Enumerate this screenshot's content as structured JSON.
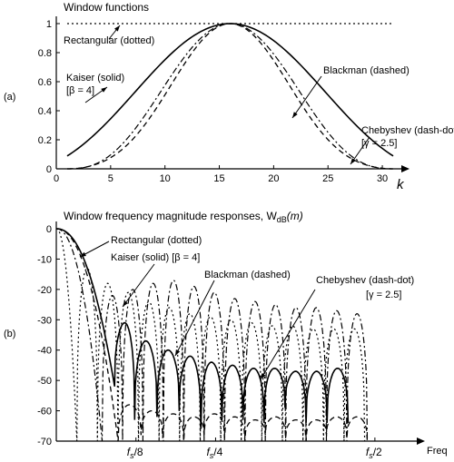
{
  "chart_data": [
    {
      "type": "line",
      "panel_label": "(a)",
      "title": "Window functions",
      "xlabel": "k",
      "xlim": [
        0,
        32
      ],
      "ylim": [
        0,
        1
      ],
      "x_ticks": [
        0,
        5,
        10,
        15,
        20,
        25,
        30
      ],
      "y_ticks": [
        0,
        0.2,
        0.4,
        0.6,
        0.8,
        1
      ],
      "y_tick_labels": [
        "0",
        "0.2",
        "0.4",
        "0.6",
        "0.8",
        "1"
      ],
      "grid": false,
      "series": [
        {
          "key": "rectangular",
          "style": "dotted",
          "x": [
            1,
            31
          ],
          "y": [
            1,
            1
          ]
        },
        {
          "key": "kaiser",
          "style": "solid",
          "x": [
            1,
            3,
            5,
            7,
            9,
            11,
            13,
            15,
            16,
            17,
            19,
            21,
            23,
            25,
            27,
            29,
            31
          ],
          "y": [
            0.09,
            0.19,
            0.32,
            0.47,
            0.63,
            0.79,
            0.92,
            0.99,
            1.0,
            0.99,
            0.92,
            0.79,
            0.63,
            0.47,
            0.32,
            0.19,
            0.09
          ]
        },
        {
          "key": "blackman",
          "style": "dashed",
          "x": [
            1,
            3,
            5,
            7,
            9,
            11,
            13,
            15,
            16,
            17,
            19,
            21,
            23,
            25,
            27,
            29,
            31
          ],
          "y": [
            0.0,
            0.04,
            0.13,
            0.29,
            0.51,
            0.74,
            0.92,
            0.99,
            1.0,
            0.99,
            0.92,
            0.74,
            0.51,
            0.29,
            0.13,
            0.04,
            0.0
          ]
        },
        {
          "key": "chebyshev",
          "style": "dash-dot",
          "x": [
            1,
            3,
            5,
            7,
            9,
            11,
            13,
            15,
            16,
            17,
            19,
            21,
            23,
            25,
            27,
            29,
            31
          ],
          "y": [
            0.0,
            0.01,
            0.05,
            0.15,
            0.33,
            0.58,
            0.84,
            0.98,
            1.0,
            0.98,
            0.84,
            0.58,
            0.33,
            0.15,
            0.05,
            0.01,
            0.0
          ]
        }
      ],
      "annotations": [
        {
          "key": "rectangular",
          "lines": [
            "Rectangular (dotted)"
          ]
        },
        {
          "key": "kaiser",
          "lines": [
            "Kaiser (solid)",
            "[β = 4]"
          ]
        },
        {
          "key": "blackman",
          "lines": [
            "Blackman (dashed)"
          ]
        },
        {
          "key": "chebyshev",
          "lines": [
            "Chebyshev (dash-dot)",
            "[γ = 2.5]"
          ]
        }
      ]
    },
    {
      "type": "line",
      "panel_label": "(b)",
      "title": "Window frequency magnitude responses, W",
      "title_sub": "dB",
      "title_tail": "(m)",
      "xlabel": "Freq",
      "ylim": [
        -70,
        0
      ],
      "y_ticks": [
        0,
        -10,
        -20,
        -30,
        -40,
        -50,
        -60,
        -70
      ],
      "y_tick_labels": [
        "0",
        "-10",
        "-20",
        "-30",
        "-40",
        "-50",
        "-60",
        "-70"
      ],
      "x_range": [
        0,
        0.5
      ],
      "x_ticks": [
        {
          "value": 0.125,
          "label": "f",
          "sub": "s",
          "tail": "/8"
        },
        {
          "value": 0.25,
          "label": "f",
          "sub": "s",
          "tail": "/4"
        },
        {
          "value": 0.5,
          "label": "f",
          "sub": "s",
          "tail": "/2"
        }
      ],
      "grid": false,
      "series": [
        {
          "key": "rectangular",
          "style": "dotted",
          "nulls": [
            0.0323,
            0.0645,
            0.0968,
            0.129,
            0.1613,
            0.1935,
            0.2258,
            0.2581,
            0.2903,
            0.3226,
            0.3548,
            0.3871,
            0.4194,
            0.4516,
            0.4839
          ],
          "peaks": [
            -13,
            -18,
            -21,
            -24,
            -26,
            -28,
            -29,
            -30,
            -31,
            -32,
            -32,
            -33,
            -33,
            -33
          ]
        },
        {
          "key": "kaiser",
          "style": "solid",
          "nulls": [
            0.0915,
            0.123,
            0.158,
            0.193,
            0.227,
            0.26,
            0.293,
            0.326,
            0.359,
            0.392,
            0.425,
            0.458
          ],
          "null_db": [
            -52,
            -63,
            -62,
            -60,
            -66,
            -63,
            -63,
            -64,
            -59,
            -64,
            -64,
            -64
          ],
          "peaks": [
            -31,
            -37,
            -40,
            -42,
            -44,
            -45,
            -46,
            -46,
            -47,
            -47,
            -46
          ]
        },
        {
          "key": "blackman",
          "style": "dashed",
          "nulls": [
            0.097,
            0.133,
            0.167,
            0.2,
            0.232,
            0.264,
            0.296,
            0.328,
            0.36,
            0.392,
            0.424,
            0.456,
            0.488
          ],
          "null_db": [
            -70,
            -68,
            -69,
            -70,
            -68,
            -69,
            -70,
            -68,
            -69,
            -70,
            -68,
            -69,
            -70
          ],
          "peaks": [
            -58,
            -60,
            -61,
            -62,
            -61,
            -62,
            -63,
            -62,
            -63,
            -63,
            -62,
            -62
          ]
        },
        {
          "key": "chebyshev",
          "style": "dash-dot",
          "nulls": [
            0.072,
            0.104,
            0.136,
            0.168,
            0.2,
            0.232,
            0.264,
            0.296,
            0.328,
            0.36,
            0.392,
            0.424,
            0.456,
            0.488
          ],
          "peaks": [
            -22,
            -20,
            -18,
            -17,
            -19,
            -21,
            -23,
            -24,
            -25,
            -26,
            -26,
            -27,
            -28
          ]
        }
      ],
      "annotations": [
        {
          "key": "rectangular",
          "lines": [
            "Rectangular (dotted)"
          ]
        },
        {
          "key": "kaiser",
          "lines": [
            "Kaiser (solid) [β = 4]"
          ]
        },
        {
          "key": "blackman",
          "lines": [
            "Blackman (dashed)"
          ]
        },
        {
          "key": "chebyshev",
          "lines": [
            "Chebyshev (dash-dot)",
            "[γ = 2.5]"
          ]
        }
      ]
    }
  ]
}
